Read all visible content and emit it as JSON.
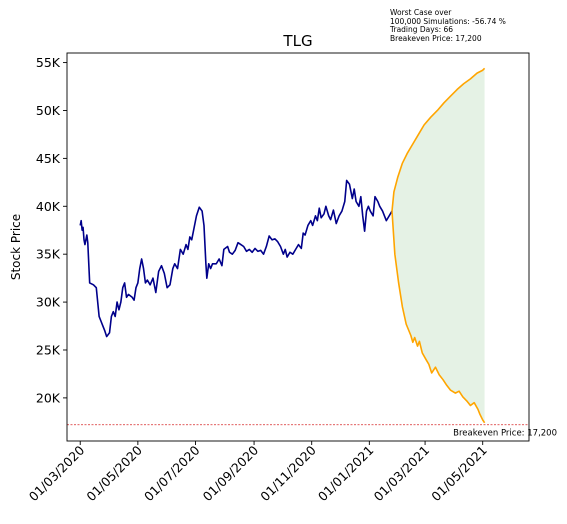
{
  "chart_data": {
    "type": "line",
    "title": "TLG",
    "xlabel": "",
    "ylabel": "Stock Price",
    "xlim": [
      "2020-02-16",
      "2021-06-19"
    ],
    "ylim": [
      15500,
      56000
    ],
    "grid": false,
    "x_ticks": [
      {
        "date": "2020-03-01",
        "label": "01/03/2020"
      },
      {
        "date": "2020-05-01",
        "label": "01/05/2020"
      },
      {
        "date": "2020-07-01",
        "label": "01/07/2020"
      },
      {
        "date": "2020-09-01",
        "label": "01/09/2020"
      },
      {
        "date": "2020-11-01",
        "label": "01/11/2020"
      },
      {
        "date": "2021-01-01",
        "label": "01/01/2021"
      },
      {
        "date": "2021-03-01",
        "label": "01/03/2021"
      },
      {
        "date": "2021-05-01",
        "label": "01/05/2021"
      }
    ],
    "y_ticks": [
      {
        "value": 20000,
        "label": "20K"
      },
      {
        "value": 25000,
        "label": "25K"
      },
      {
        "value": 30000,
        "label": "30K"
      },
      {
        "value": 35000,
        "label": "35K"
      },
      {
        "value": 40000,
        "label": "40K"
      },
      {
        "value": 45000,
        "label": "45K"
      },
      {
        "value": 50000,
        "label": "50K"
      },
      {
        "value": 55000,
        "label": "55K"
      }
    ],
    "historical": {
      "color": "#00008b",
      "points": [
        [
          "2020-03-01",
          38000
        ],
        [
          "2020-03-02",
          38500
        ],
        [
          "2020-03-03",
          37500
        ],
        [
          "2020-03-04",
          37800
        ],
        [
          "2020-03-05",
          36500
        ],
        [
          "2020-03-06",
          36000
        ],
        [
          "2020-03-08",
          37000
        ],
        [
          "2020-03-09",
          36200
        ],
        [
          "2020-03-11",
          32000
        ],
        [
          "2020-03-15",
          31800
        ],
        [
          "2020-03-18",
          31500
        ],
        [
          "2020-03-19",
          30500
        ],
        [
          "2020-03-21",
          28500
        ],
        [
          "2020-03-23",
          28000
        ],
        [
          "2020-03-25",
          27500
        ],
        [
          "2020-03-27",
          27000
        ],
        [
          "2020-03-29",
          26400
        ],
        [
          "2020-04-01",
          26800
        ],
        [
          "2020-04-03",
          28500
        ],
        [
          "2020-04-05",
          29000
        ],
        [
          "2020-04-07",
          28500
        ],
        [
          "2020-04-09",
          30000
        ],
        [
          "2020-04-11",
          29200
        ],
        [
          "2020-04-13",
          30000
        ],
        [
          "2020-04-15",
          31500
        ],
        [
          "2020-04-17",
          32000
        ],
        [
          "2020-04-19",
          30500
        ],
        [
          "2020-04-21",
          30800
        ],
        [
          "2020-04-25",
          30500
        ],
        [
          "2020-04-27",
          30200
        ],
        [
          "2020-04-29",
          31500
        ],
        [
          "2020-05-01",
          32000
        ],
        [
          "2020-05-03",
          33500
        ],
        [
          "2020-05-05",
          34500
        ],
        [
          "2020-05-07",
          33500
        ],
        [
          "2020-05-09",
          32000
        ],
        [
          "2020-05-11",
          32300
        ],
        [
          "2020-05-14",
          31800
        ],
        [
          "2020-05-17",
          32500
        ],
        [
          "2020-05-20",
          31000
        ],
        [
          "2020-05-23",
          33200
        ],
        [
          "2020-05-26",
          33800
        ],
        [
          "2020-05-29",
          33000
        ],
        [
          "2020-06-01",
          31500
        ],
        [
          "2020-06-04",
          31800
        ],
        [
          "2020-06-07",
          33500
        ],
        [
          "2020-06-09",
          34000
        ],
        [
          "2020-06-12",
          33500
        ],
        [
          "2020-06-15",
          35500
        ],
        [
          "2020-06-18",
          35000
        ],
        [
          "2020-06-21",
          36000
        ],
        [
          "2020-06-23",
          35500
        ],
        [
          "2020-06-25",
          36800
        ],
        [
          "2020-06-27",
          36500
        ],
        [
          "2020-06-29",
          37500
        ],
        [
          "2020-07-02",
          39000
        ],
        [
          "2020-07-05",
          39900
        ],
        [
          "2020-07-08",
          39500
        ],
        [
          "2020-07-10",
          38000
        ],
        [
          "2020-07-12",
          34000
        ],
        [
          "2020-07-13",
          32500
        ],
        [
          "2020-07-15",
          34000
        ],
        [
          "2020-07-17",
          33500
        ],
        [
          "2020-07-19",
          34000
        ],
        [
          "2020-07-23",
          34000
        ],
        [
          "2020-07-26",
          34500
        ],
        [
          "2020-07-29",
          33800
        ],
        [
          "2020-07-31",
          35500
        ],
        [
          "2020-08-04",
          35800
        ],
        [
          "2020-08-06",
          35200
        ],
        [
          "2020-08-09",
          35000
        ],
        [
          "2020-08-12",
          35400
        ],
        [
          "2020-08-15",
          36200
        ],
        [
          "2020-08-18",
          36000
        ],
        [
          "2020-08-21",
          35800
        ],
        [
          "2020-08-24",
          35300
        ],
        [
          "2020-08-27",
          35500
        ],
        [
          "2020-08-30",
          35200
        ],
        [
          "2020-09-02",
          35600
        ],
        [
          "2020-09-05",
          35300
        ],
        [
          "2020-09-08",
          35400
        ],
        [
          "2020-09-11",
          35000
        ],
        [
          "2020-09-14",
          35800
        ],
        [
          "2020-09-17",
          36900
        ],
        [
          "2020-09-20",
          36500
        ],
        [
          "2020-09-23",
          36600
        ],
        [
          "2020-09-26",
          36300
        ],
        [
          "2020-09-29",
          35800
        ],
        [
          "2020-10-02",
          35000
        ],
        [
          "2020-10-04",
          35500
        ],
        [
          "2020-10-06",
          34700
        ],
        [
          "2020-10-09",
          35200
        ],
        [
          "2020-10-12",
          35000
        ],
        [
          "2020-10-15",
          35500
        ],
        [
          "2020-10-18",
          36000
        ],
        [
          "2020-10-21",
          35600
        ],
        [
          "2020-10-23",
          37200
        ],
        [
          "2020-10-25",
          37000
        ],
        [
          "2020-10-28",
          38000
        ],
        [
          "2020-10-31",
          38500
        ],
        [
          "2020-11-02",
          38000
        ],
        [
          "2020-11-05",
          39000
        ],
        [
          "2020-11-07",
          38500
        ],
        [
          "2020-11-09",
          39800
        ],
        [
          "2020-11-11",
          38800
        ],
        [
          "2020-11-14",
          39200
        ],
        [
          "2020-11-16",
          40000
        ],
        [
          "2020-11-19",
          39000
        ],
        [
          "2020-11-21",
          38600
        ],
        [
          "2020-11-24",
          39600
        ],
        [
          "2020-11-27",
          38200
        ],
        [
          "2020-11-30",
          39000
        ],
        [
          "2020-12-03",
          39500
        ],
        [
          "2020-12-06",
          40500
        ],
        [
          "2020-12-08",
          42700
        ],
        [
          "2020-12-11",
          42300
        ],
        [
          "2020-12-14",
          40800
        ],
        [
          "2020-12-16",
          41800
        ],
        [
          "2020-12-18",
          40500
        ],
        [
          "2020-12-21",
          40000
        ],
        [
          "2020-12-23",
          41000
        ],
        [
          "2020-12-25",
          39000
        ],
        [
          "2020-12-27",
          37400
        ],
        [
          "2020-12-29",
          39500
        ],
        [
          "2020-12-31",
          40000
        ],
        [
          "2021-01-02",
          39500
        ],
        [
          "2021-01-05",
          39000
        ],
        [
          "2021-01-07",
          41000
        ],
        [
          "2021-01-10",
          40500
        ],
        [
          "2021-01-12",
          40000
        ],
        [
          "2021-01-15",
          39500
        ],
        [
          "2021-01-19",
          38500
        ],
        [
          "2021-01-22",
          39000
        ],
        [
          "2021-01-25",
          39500
        ]
      ]
    },
    "worst_case": {
      "color": "#ffa500",
      "points": [
        [
          "2021-01-25",
          39500
        ],
        [
          "2021-01-28",
          35000
        ],
        [
          "2021-02-01",
          32000
        ],
        [
          "2021-02-05",
          29500
        ],
        [
          "2021-02-09",
          27700
        ],
        [
          "2021-02-14",
          26500
        ],
        [
          "2021-02-16",
          25800
        ],
        [
          "2021-02-18",
          26300
        ],
        [
          "2021-02-21",
          25400
        ],
        [
          "2021-02-23",
          25900
        ],
        [
          "2021-02-26",
          24700
        ],
        [
          "2021-03-02",
          24000
        ],
        [
          "2021-03-05",
          23500
        ],
        [
          "2021-03-08",
          22600
        ],
        [
          "2021-03-12",
          23200
        ],
        [
          "2021-03-16",
          22400
        ],
        [
          "2021-03-20",
          21900
        ],
        [
          "2021-03-24",
          21300
        ],
        [
          "2021-03-28",
          20800
        ],
        [
          "2021-04-02",
          20500
        ],
        [
          "2021-04-06",
          20700
        ],
        [
          "2021-04-10",
          20100
        ],
        [
          "2021-04-14",
          19700
        ],
        [
          "2021-04-18",
          19200
        ],
        [
          "2021-04-22",
          19500
        ],
        [
          "2021-04-26",
          18800
        ],
        [
          "2021-04-28",
          18300
        ],
        [
          "2021-05-01",
          17700
        ],
        [
          "2021-05-03",
          17400
        ]
      ]
    },
    "best_case": {
      "color": "#ffa500",
      "points": [
        [
          "2021-01-25",
          39500
        ],
        [
          "2021-01-27",
          41500
        ],
        [
          "2021-01-31",
          43000
        ],
        [
          "2021-02-05",
          44500
        ],
        [
          "2021-02-10",
          45500
        ],
        [
          "2021-02-16",
          46500
        ],
        [
          "2021-02-22",
          47500
        ],
        [
          "2021-02-28",
          48500
        ],
        [
          "2021-03-07",
          49300
        ],
        [
          "2021-03-14",
          50000
        ],
        [
          "2021-03-21",
          50800
        ],
        [
          "2021-03-28",
          51500
        ],
        [
          "2021-04-04",
          52200
        ],
        [
          "2021-04-11",
          52800
        ],
        [
          "2021-04-18",
          53300
        ],
        [
          "2021-04-25",
          53900
        ],
        [
          "2021-05-01",
          54200
        ],
        [
          "2021-05-03",
          54400
        ]
      ]
    },
    "band_fill": "#e5f2e5",
    "breakeven": {
      "value": 17200,
      "label": "Breakeven Price: 17,200",
      "color": "#d62728"
    },
    "annotation": [
      "Worst Case over",
      "100,000 Simulations: -56.74 %",
      "Trading Days: 66",
      "Breakeven Price: 17,200"
    ]
  }
}
